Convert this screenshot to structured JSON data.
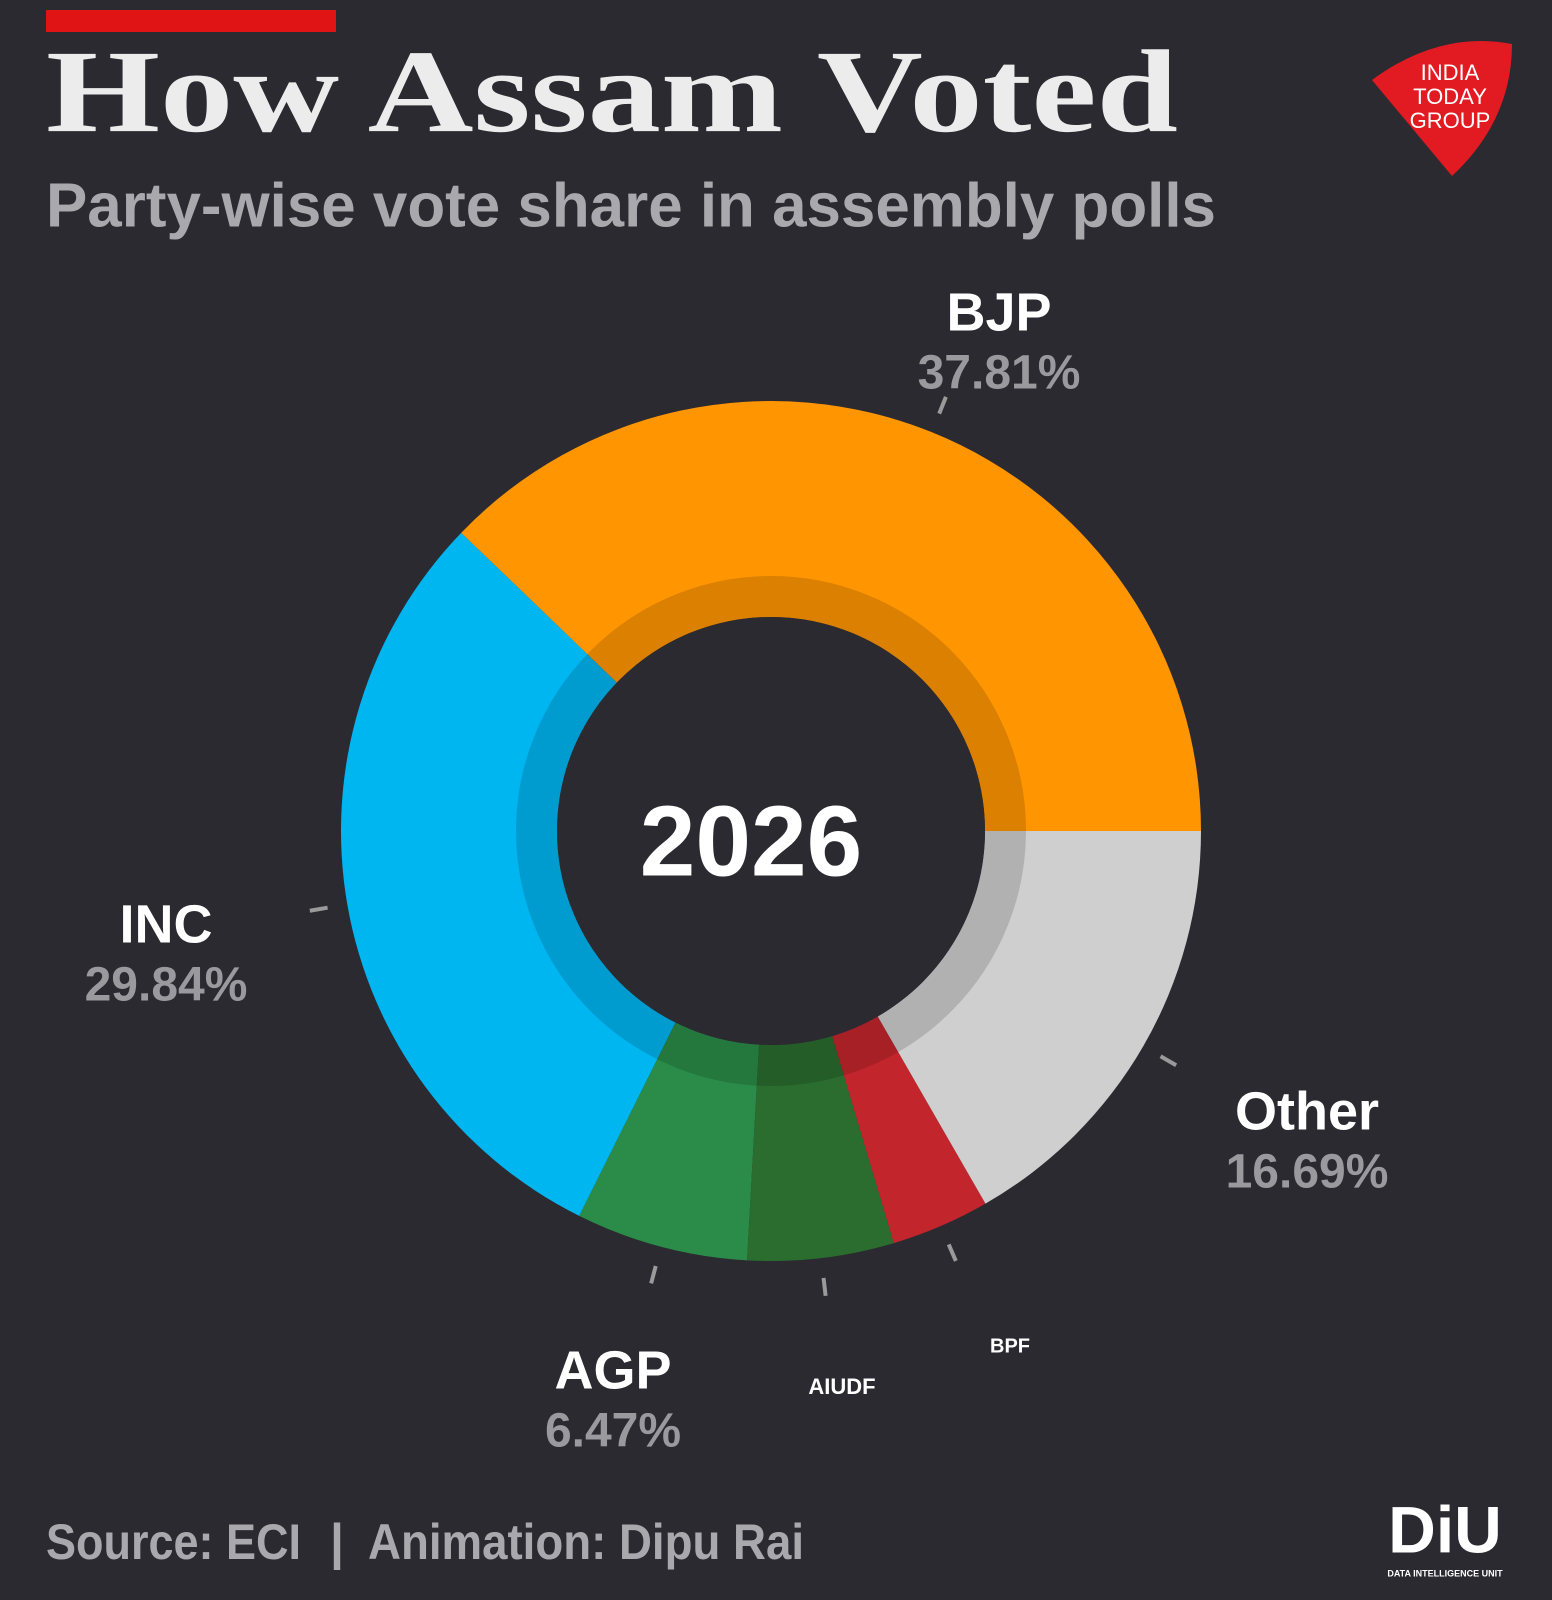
{
  "chart_data": {
    "type": "donut",
    "title": "How Assam Voted",
    "subtitle": "Party-wise vote share in assembly polls",
    "center_label": "2026",
    "categories": [
      "BJP",
      "INC",
      "AGP",
      "AIUDF",
      "BPF",
      "Other"
    ],
    "values": [
      37.81,
      29.84,
      6.47,
      5.5,
      3.7,
      16.69
    ],
    "value_labels": [
      "37.81%",
      "29.84%",
      "6.47%",
      null,
      null,
      "16.69%"
    ],
    "colors": [
      "#ff9500",
      "#00b6f1",
      "#2a8c48",
      "#2a6d2f",
      "#c2262c",
      "#cfcfcf"
    ],
    "source": "Source: ECI",
    "credit": "Animation: Dipu Rai"
  },
  "branding": {
    "publisher": [
      "INDIA",
      "TODAY",
      "GROUP"
    ],
    "unit": "DiU",
    "unit_full": "DATA INTELLIGENCE UNIT"
  }
}
